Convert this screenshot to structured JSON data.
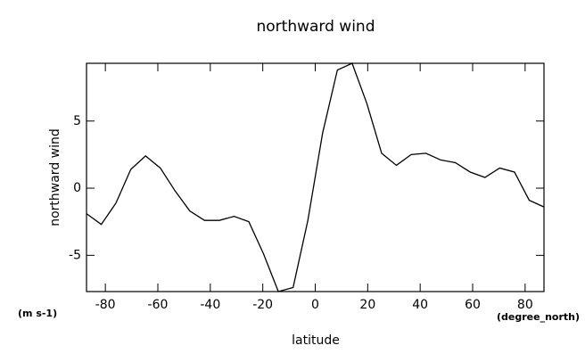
{
  "chart_data": {
    "type": "line",
    "title": "northward wind",
    "x_label": "latitude",
    "y_label": "northward wind",
    "y_units": "(m s-1)",
    "x_units": "(degree_north)",
    "x": [
      -87.19,
      -81.56,
      -75.94,
      -70.31,
      -64.69,
      -59.06,
      -53.44,
      -47.81,
      -42.19,
      -36.56,
      -30.94,
      -25.31,
      -19.69,
      -14.06,
      -8.44,
      -2.81,
      2.81,
      8.44,
      14.06,
      19.69,
      25.31,
      30.94,
      36.56,
      42.19,
      47.81,
      53.44,
      59.06,
      64.69,
      70.31,
      75.94,
      81.56,
      87.19
    ],
    "series": [
      {
        "name": "northward wind",
        "color": "#000000",
        "values": [
          -1.9,
          -2.7,
          -1.1,
          1.4,
          2.4,
          1.5,
          -0.2,
          -1.7,
          -2.4,
          -2.4,
          -2.1,
          -2.5,
          -4.9,
          -7.7,
          -7.4,
          -2.4,
          4.1,
          8.8,
          9.3,
          6.3,
          2.6,
          1.7,
          2.5,
          2.6,
          2.1,
          1.9,
          1.2,
          0.8,
          1.5,
          1.2,
          -0.9,
          -1.4
        ]
      }
    ],
    "xlim": [
      -87.19,
      87.19
    ],
    "ylim": [
      -7.7,
      9.3
    ],
    "xticks": [
      -80,
      -60,
      -40,
      -20,
      0,
      20,
      40,
      60,
      80
    ],
    "yticks": [
      -5,
      0,
      5
    ],
    "grid": false
  }
}
